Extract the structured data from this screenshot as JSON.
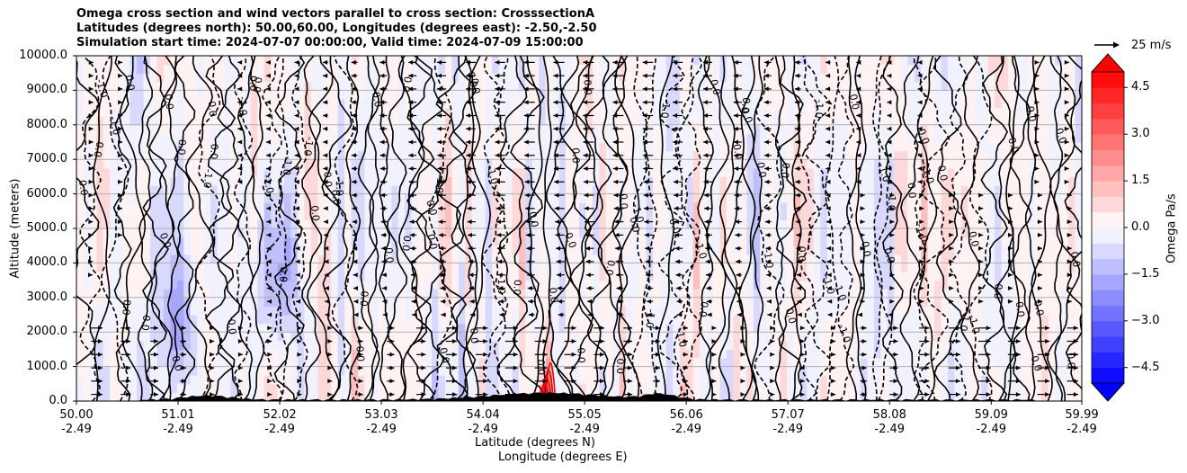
{
  "chart_data": {
    "type": "heatmap",
    "title_lines": [
      "Omega cross section and wind vectors parallel to cross section: CrosssectionA",
      "Latitudes (degrees north): 50.00,60.00, Longitudes (degrees east): -2.50,-2.50",
      "Simulation start time: 2024-07-07 00:00:00, Valid time: 2024-07-09 15:00:00"
    ],
    "ylabel": "Altitude (meters)",
    "xlabel_lat": "Latitude (degrees N)",
    "xlabel_lon": "Longitude (degrees E)",
    "ylim": [
      0,
      10000
    ],
    "y_ticks": [
      "0.0",
      "1000.0",
      "2000.0",
      "3000.0",
      "4000.0",
      "5000.0",
      "6000.0",
      "7000.0",
      "8000.0",
      "9000.0",
      "10000.0"
    ],
    "y_tick_values": [
      0,
      1000,
      2000,
      3000,
      4000,
      5000,
      6000,
      7000,
      8000,
      9000,
      10000
    ],
    "xlim": [
      50.0,
      59.99
    ],
    "x_tick_values": [
      50.0,
      51.01,
      52.02,
      53.03,
      54.04,
      55.05,
      56.06,
      57.07,
      58.08,
      59.09,
      59.99
    ],
    "x_ticks_lat": [
      "50.00",
      "51.01",
      "52.02",
      "53.03",
      "54.04",
      "55.05",
      "56.06",
      "57.07",
      "58.08",
      "59.09",
      "59.99"
    ],
    "x_ticks_lon": [
      "-2.49",
      "-2.49",
      "-2.49",
      "-2.49",
      "-2.49",
      "-2.49",
      "-2.49",
      "-2.49",
      "-2.49",
      "-2.49",
      "-2.49"
    ],
    "colorbar": {
      "label": "Omega Pa/s",
      "range": [
        -5,
        5
      ],
      "ticks": [
        "4.5",
        "3.0",
        "1.5",
        "0.0",
        "−1.5",
        "−3.0",
        "−4.5"
      ],
      "tick_values": [
        4.5,
        3.0,
        1.5,
        0.0,
        -1.5,
        -3.0,
        -4.5
      ],
      "levels": 20,
      "extend": "both",
      "cmap": "bwr"
    },
    "vector_key": {
      "label": "25 m/s",
      "value": 25
    },
    "contour_labels": [
      "0.0",
      "-1.0",
      "1.0",
      "-2.0"
    ],
    "terrain_peak_lat": 54.67
  }
}
